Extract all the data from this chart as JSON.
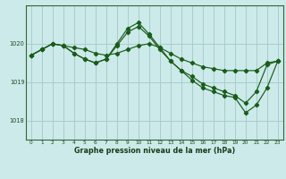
{
  "title": "Graphe pression niveau de la mer (hPa)",
  "bg_color": "#cceaea",
  "grid_color": "#aacccc",
  "line_color": "#1a5c1a",
  "xlim": [
    -0.5,
    23.5
  ],
  "ylim": [
    1017.5,
    1021.0
  ],
  "yticks": [
    1018,
    1019,
    1020
  ],
  "xticks": [
    0,
    1,
    2,
    3,
    4,
    5,
    6,
    7,
    8,
    9,
    10,
    11,
    12,
    13,
    14,
    15,
    16,
    17,
    18,
    19,
    20,
    21,
    22,
    23
  ],
  "series1": [
    1019.7,
    1019.85,
    1020.0,
    1019.95,
    1019.9,
    1019.85,
    1019.75,
    1019.7,
    1019.75,
    1019.85,
    1019.95,
    1020.0,
    1019.9,
    1019.75,
    1019.6,
    1019.5,
    1019.4,
    1019.35,
    1019.3,
    1019.3,
    1019.3,
    1019.3,
    1019.5,
    1019.55
  ],
  "series2": [
    1019.7,
    1019.85,
    1020.0,
    1019.95,
    1019.75,
    1019.6,
    1019.5,
    1019.6,
    1019.95,
    1020.3,
    1020.45,
    1020.2,
    1019.85,
    1019.55,
    1019.3,
    1019.15,
    1018.95,
    1018.85,
    1018.75,
    1018.65,
    1018.45,
    1018.75,
    1019.45,
    1019.55
  ],
  "series3": [
    1019.7,
    1019.85,
    1020.0,
    1019.95,
    1019.75,
    1019.6,
    1019.5,
    1019.6,
    1020.0,
    1020.4,
    1020.55,
    1020.25,
    1019.9,
    1019.55,
    1019.3,
    1019.05,
    1018.85,
    1018.75,
    1018.65,
    1018.6,
    1018.2,
    1018.4,
    1018.85,
    1019.55
  ]
}
